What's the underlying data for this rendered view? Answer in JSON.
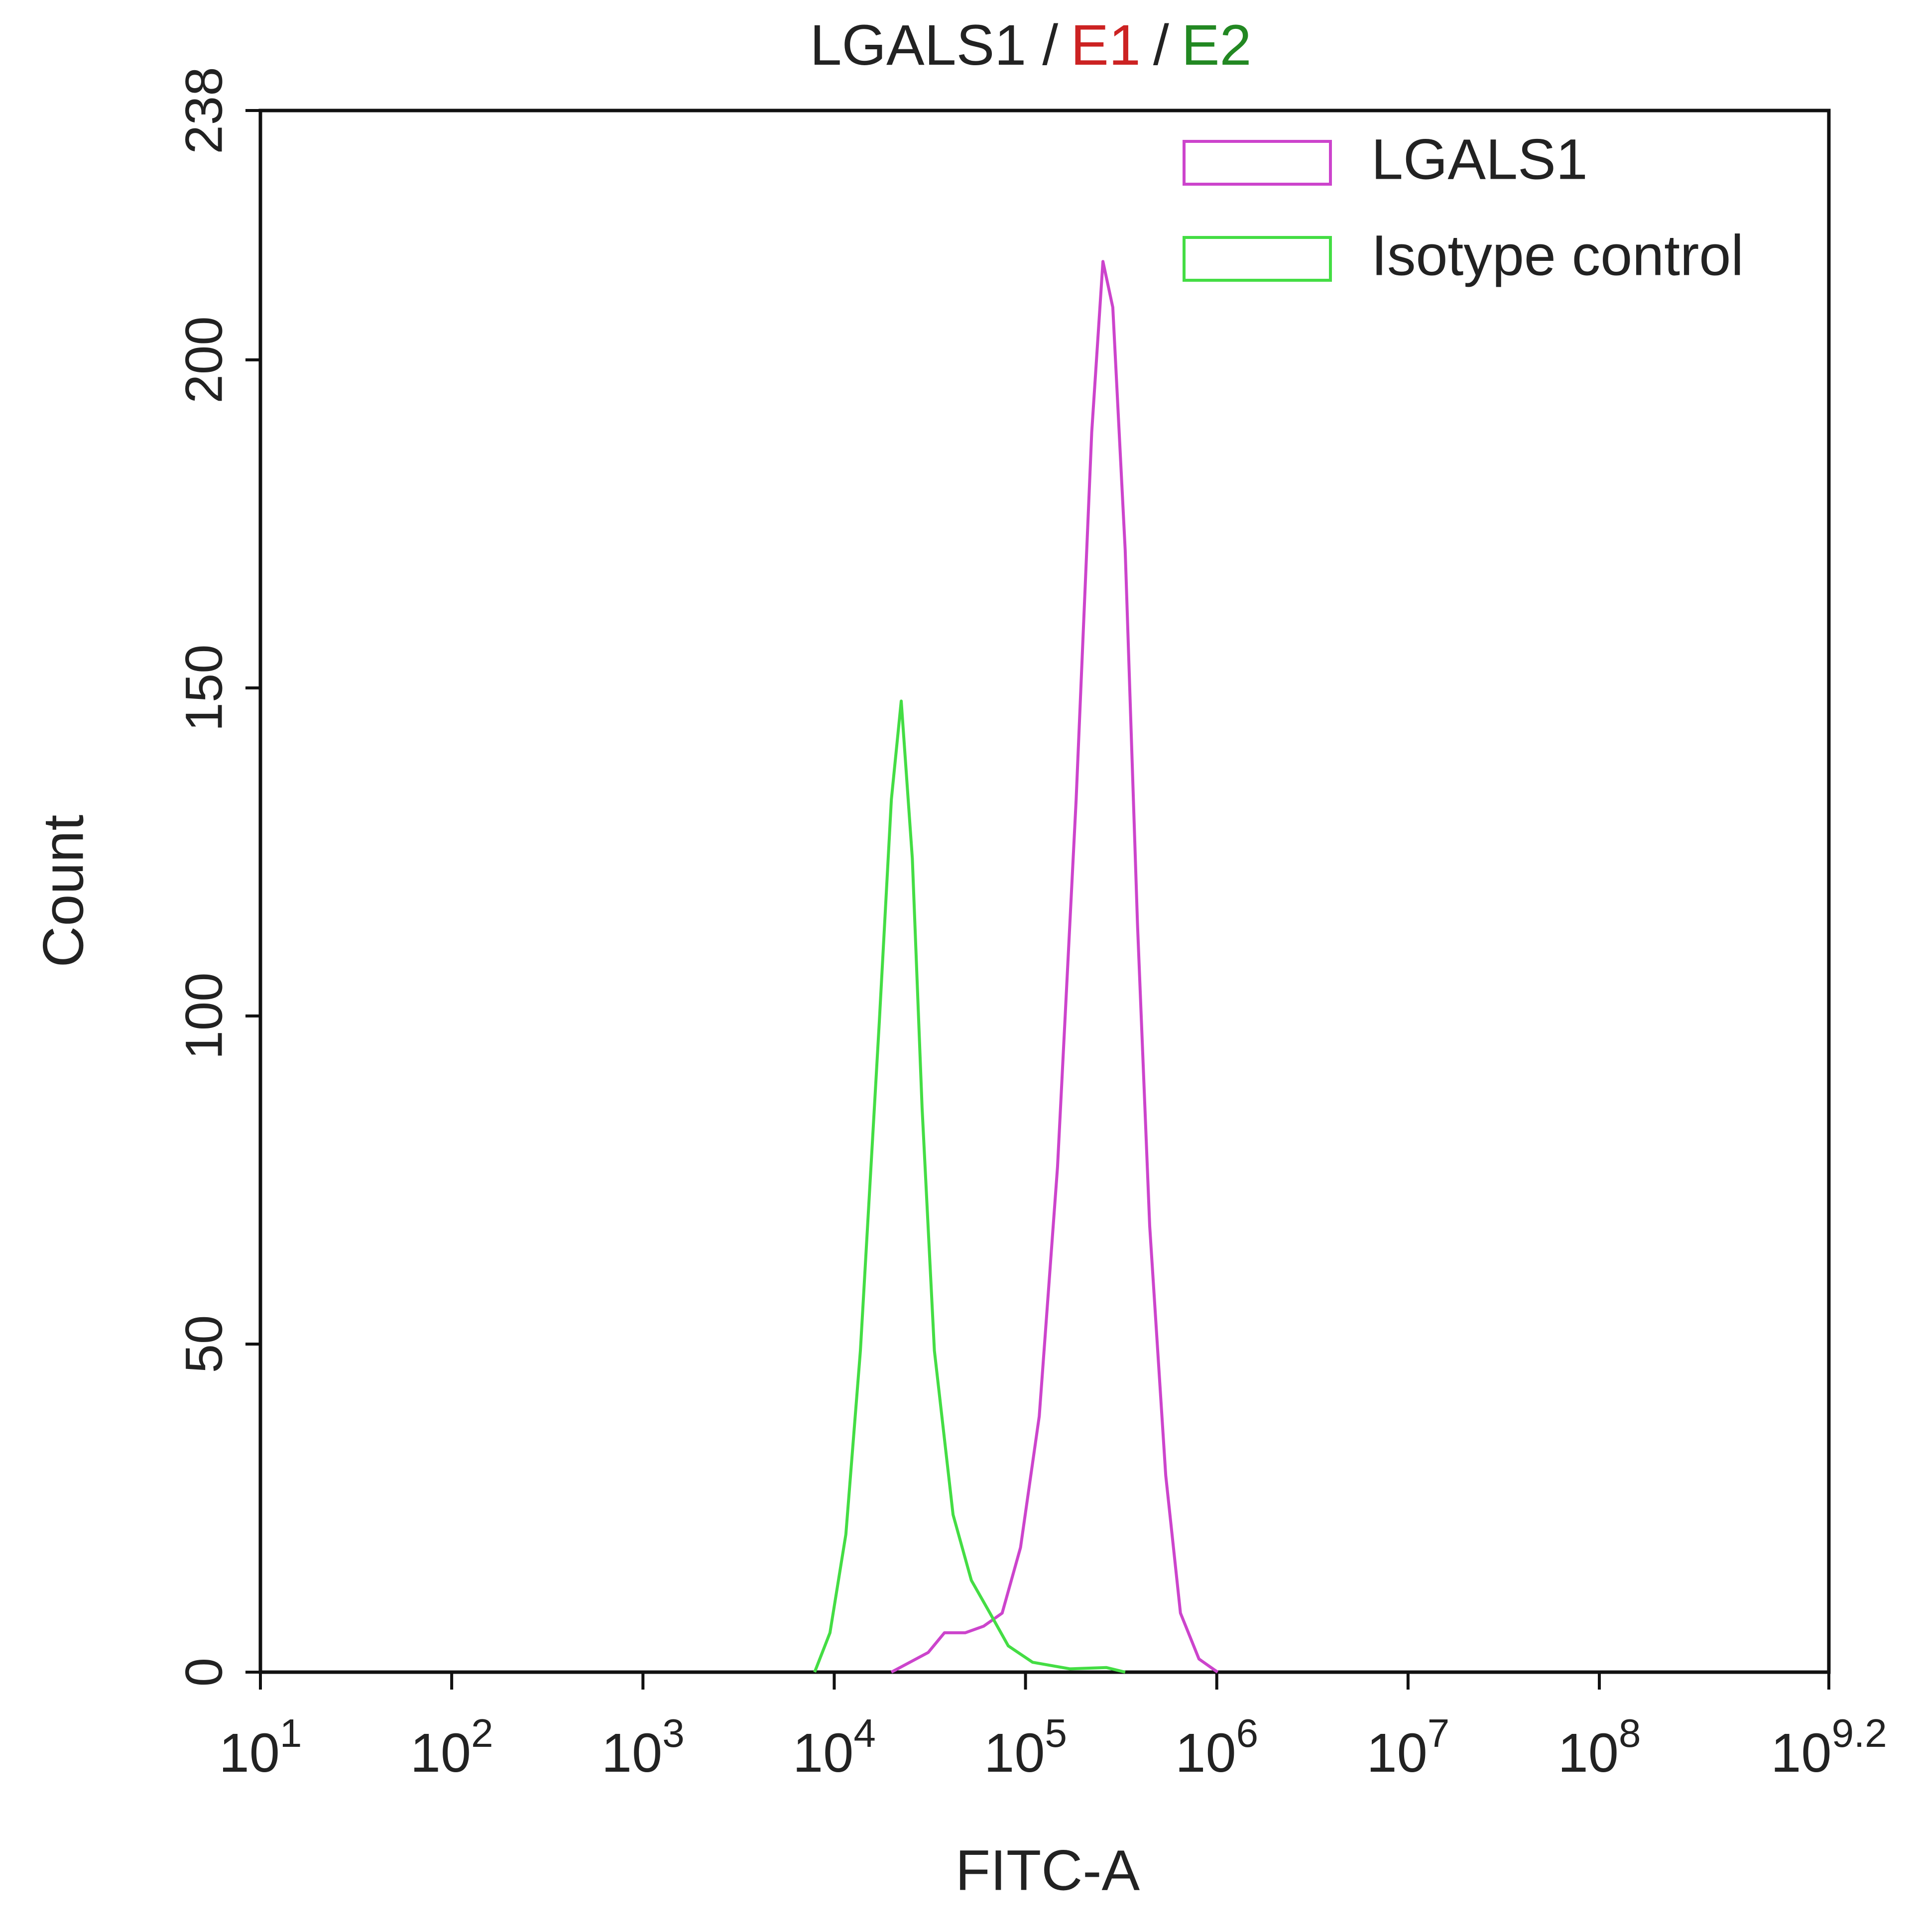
{
  "chart_data": {
    "type": "line",
    "title_parts": [
      {
        "text": "LGALS1 /",
        "color": "#222222"
      },
      {
        "text": "E1",
        "color": "#cc2222"
      },
      {
        "text": "/",
        "color": "#222222"
      },
      {
        "text": "E2",
        "color": "#228822"
      }
    ],
    "x_label": "FITC-A",
    "y_label": "Count",
    "x_scale": "log",
    "xlim": [
      10,
      1584893192
    ],
    "xticks": [
      {
        "value": 10,
        "label": "10",
        "exponent": "1"
      },
      {
        "value": 100,
        "label": "10",
        "exponent": "2"
      },
      {
        "value": 1000,
        "label": "10",
        "exponent": "3"
      },
      {
        "value": 10000,
        "label": "10",
        "exponent": "4"
      },
      {
        "value": 100000,
        "label": "10",
        "exponent": "5"
      },
      {
        "value": 1000000,
        "label": "10",
        "exponent": "6"
      },
      {
        "value": 10000000,
        "label": "10",
        "exponent": "7"
      },
      {
        "value": 100000000,
        "label": "10",
        "exponent": "8"
      },
      {
        "value": 1584893192,
        "label": "10",
        "exponent": "9.2"
      }
    ],
    "ylim": [
      0,
      238
    ],
    "yticks": [
      0,
      50,
      100,
      150,
      200,
      238
    ],
    "grid": false,
    "legend": "upper right",
    "series": [
      {
        "name": "LGALS1",
        "color": "#cc44cc",
        "x": [
          19900,
          31000,
          37700,
          48400,
          60400,
          75500,
          94200,
          118000,
          147000,
          184000,
          222000,
          254000,
          286000,
          332000,
          385000,
          446000,
          541000,
          646000,
          807000,
          1010000
        ],
        "values": [
          0,
          3,
          6,
          6,
          7,
          9,
          19,
          39,
          77,
          133,
          189,
          215,
          208,
          171,
          114,
          68,
          30,
          9,
          2,
          0
        ]
      },
      {
        "name": "Isotype control",
        "color": "#44dd44",
        "x": [
          7900,
          9500,
          11500,
          13700,
          17200,
          19900,
          22400,
          25600,
          28800,
          33400,
          41800,
          52100,
          65200,
          81300,
          109000,
          171000,
          265000,
          332000
        ],
        "values": [
          0,
          6,
          21,
          49,
          99,
          133,
          148,
          124,
          86,
          49,
          24,
          14,
          9,
          4,
          1.5,
          0.5,
          0.7,
          0
        ]
      }
    ]
  }
}
